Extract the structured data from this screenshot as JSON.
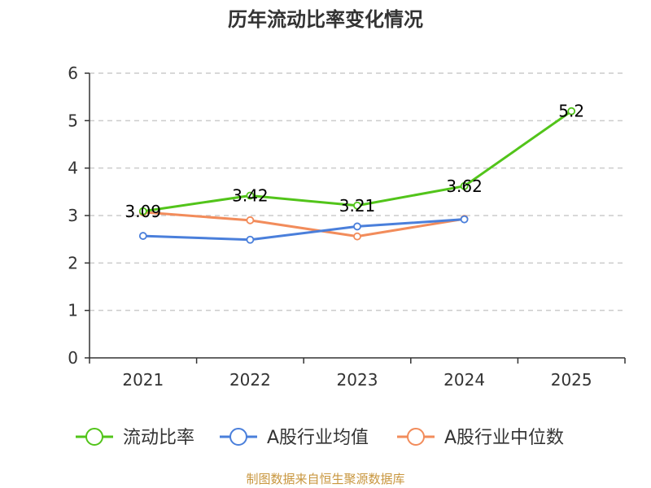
{
  "title": "历年流动比率变化情况",
  "source": "制图数据来自恒生聚源数据库",
  "chart_data": {
    "type": "line",
    "title": "历年流动比率变化情况",
    "categories": [
      "2021",
      "2022",
      "2023",
      "2024",
      "2025"
    ],
    "ylim": [
      0,
      6
    ],
    "yticks": [
      "0",
      "1",
      "2",
      "3",
      "4",
      "5",
      "6"
    ],
    "grid": true,
    "legend": "bottom",
    "series": [
      {
        "name": "流动比率",
        "color": "#52c41a",
        "values": [
          3.09,
          3.42,
          3.21,
          3.62,
          5.2
        ],
        "labels": [
          "3.09",
          "3.42",
          "3.21",
          "3.62",
          "5.2"
        ]
      },
      {
        "name": "A股行业均值",
        "color": "#4a7fdb",
        "values": [
          2.57,
          2.49,
          2.77,
          2.92,
          null
        ]
      },
      {
        "name": "A股行业中位数",
        "color": "#f28c5b",
        "values": [
          3.07,
          2.9,
          2.56,
          2.93,
          null
        ]
      }
    ]
  }
}
